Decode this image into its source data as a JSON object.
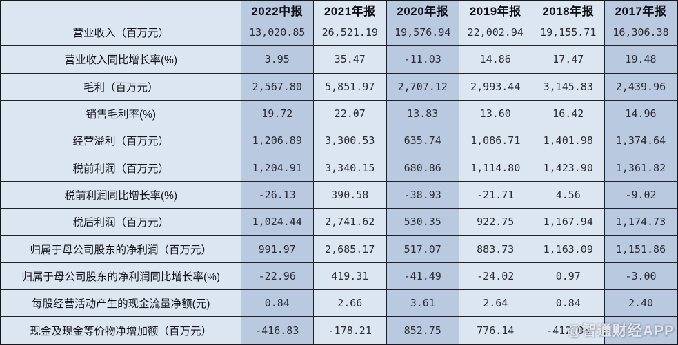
{
  "chart_data": {
    "type": "table",
    "title": "",
    "corner_label": "",
    "columns": [
      "2022中报",
      "2021年报",
      "2020年报",
      "2019年报",
      "2018年报",
      "2017年报"
    ],
    "rows": [
      {
        "label": "营业收入（百万元）",
        "values": [
          "13,020.85",
          "26,521.19",
          "19,576.94",
          "22,002.94",
          "19,155.71",
          "16,306.38"
        ]
      },
      {
        "label": "营业收入同比增长率(%)",
        "values": [
          "3.95",
          "35.47",
          "-11.03",
          "14.86",
          "17.47",
          "19.48"
        ]
      },
      {
        "label": "毛利（百万元）",
        "values": [
          "2,567.80",
          "5,851.97",
          "2,707.12",
          "2,993.44",
          "3,145.83",
          "2,439.96"
        ]
      },
      {
        "label": "销售毛利率(%)",
        "values": [
          "19.72",
          "22.07",
          "13.83",
          "13.60",
          "16.42",
          "14.96"
        ]
      },
      {
        "label": "经营溢利（百万元）",
        "values": [
          "1,206.89",
          "3,300.53",
          "635.74",
          "1,086.71",
          "1,401.98",
          "1,374.64"
        ]
      },
      {
        "label": "税前利润（百万元）",
        "values": [
          "1,204.91",
          "3,340.15",
          "680.86",
          "1,114.80",
          "1,423.90",
          "1,361.82"
        ]
      },
      {
        "label": "税前利润同比增长率(%)",
        "values": [
          "-26.13",
          "390.58",
          "-38.93",
          "-21.71",
          "4.56",
          "-9.02"
        ]
      },
      {
        "label": "税后利润（百万元）",
        "values": [
          "1,024.44",
          "2,741.62",
          "530.35",
          "922.75",
          "1,167.94",
          "1,174.73"
        ]
      },
      {
        "label": "归属于母公司股东的净利润（百万元）",
        "values": [
          "991.97",
          "2,685.17",
          "517.07",
          "883.73",
          "1,163.09",
          "1,151.86"
        ]
      },
      {
        "label": "归属于母公司股东的净利润同比增长率(%)",
        "values": [
          "-22.96",
          "419.31",
          "-41.49",
          "-24.02",
          "0.97",
          "-3.00"
        ]
      },
      {
        "label": "每股经营活动产生的现金流量净额(元)",
        "values": [
          "0.84",
          "2.66",
          "3.61",
          "2.64",
          "0.84",
          "2.40"
        ]
      },
      {
        "label": "现金及现金等价物净增加额（百万元）",
        "values": [
          "-416.83",
          "-178.21",
          "852.75",
          "776.14",
          "-412.00",
          ""
        ]
      }
    ],
    "column_shades": [
      "dark",
      "light",
      "dark",
      "light",
      "light",
      "dark"
    ],
    "colors": {
      "light_cell": "#dce6f1",
      "dark_cell": "#b9c9e0",
      "border": "#202229"
    },
    "layout_hints": {
      "grid": "on",
      "label_column_align": "center",
      "value_align": "center"
    }
  },
  "watermark": {
    "text": "@智通财经APP"
  }
}
